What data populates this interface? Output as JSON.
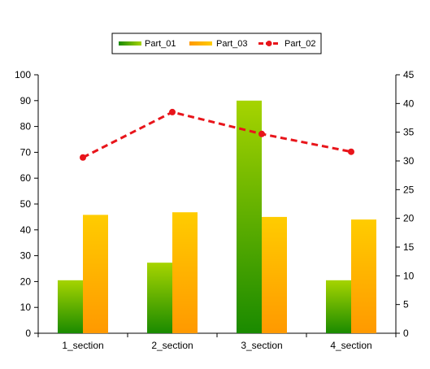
{
  "chart_data": {
    "type": "bar",
    "categories": [
      "1_section",
      "2_section",
      "3_section",
      "4_section"
    ],
    "series": [
      {
        "name": "Part_01",
        "type": "bar",
        "axis": "left",
        "values": [
          20.5,
          27.3,
          90,
          20.5
        ]
      },
      {
        "name": "Part_03",
        "type": "bar",
        "axis": "left",
        "values": [
          45.8,
          46.8,
          45,
          44
        ]
      },
      {
        "name": "Part_02",
        "type": "line",
        "axis": "right",
        "line_style": "dashed",
        "marker": "circle",
        "values": [
          30.6,
          38.5,
          34.7,
          31.6
        ]
      }
    ],
    "y_left": {
      "range": [
        0,
        100
      ],
      "ticks": [
        0,
        10,
        20,
        30,
        40,
        50,
        60,
        70,
        80,
        90,
        100
      ]
    },
    "y_right": {
      "range": [
        0,
        45
      ],
      "ticks": [
        0,
        5,
        10,
        15,
        20,
        25,
        30,
        35,
        40,
        45
      ]
    },
    "grid": false,
    "legend": {
      "placement": "top-center",
      "entries": [
        "Part_01",
        "Part_03",
        "Part_02"
      ]
    },
    "colors": {
      "Part_01_top": "#a6d400",
      "Part_01_bottom": "#1a8a00",
      "Part_03_top": "#ffcc00",
      "Part_03_bottom": "#ff9900",
      "Part_02": "#e8151b",
      "axis": "#000000"
    }
  }
}
